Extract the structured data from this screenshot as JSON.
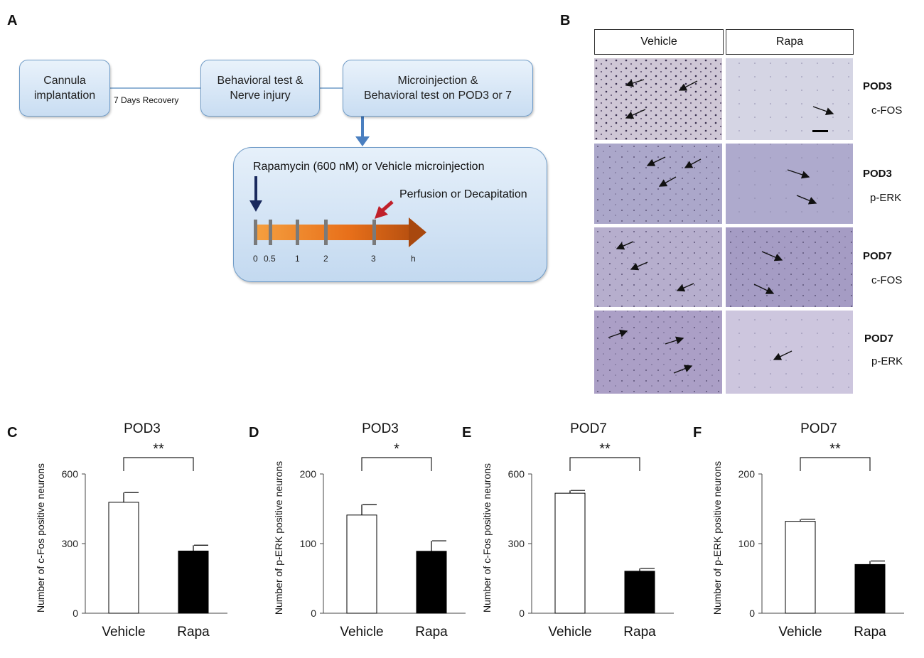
{
  "panels": {
    "A": "A",
    "B": "B",
    "C": "C",
    "D": "D",
    "E": "E",
    "F": "F"
  },
  "schematic": {
    "box1": "Cannula\nimplantation",
    "recovery": "7 Days Recovery",
    "box2": "Behavioral  test &\nNerve  injury",
    "box3": "Microinjection &\nBehavioral  test on POD3 or 7",
    "injection_text": "Rapamycin (600 nM) or Vehicle microinjection",
    "perfusion_text": "Perfusion  or Decapitation",
    "timeline_ticks": [
      "0",
      "0.5",
      "1",
      "2",
      "3",
      "h"
    ]
  },
  "histology": {
    "columns": [
      "Vehicle",
      "Rapa"
    ],
    "rows": [
      {
        "day": "POD3",
        "marker": "c-FOS"
      },
      {
        "day": "POD3",
        "marker": "p-ERK"
      },
      {
        "day": "POD7",
        "marker": "c-FOS"
      },
      {
        "day": "POD7",
        "marker": "p-ERK"
      }
    ]
  },
  "colors": {
    "box_border": "#6f9bc7",
    "arrow_blue": "#4a7fc0",
    "arrow_navy": "#1a2a5e",
    "arrow_red": "#c0202a",
    "timeline_orange": "#f07a20",
    "tissue": "#a8a2c8"
  },
  "chart_data": [
    {
      "panel": "C",
      "type": "bar",
      "title": "POD3",
      "ylabel": "Number of c-Fos positive neurons",
      "xlabel": "",
      "categories": [
        "Vehicle",
        "Rapa"
      ],
      "values": [
        478,
        268
      ],
      "errors": [
        42,
        25
      ],
      "ylim": [
        0,
        600
      ],
      "yticks": [
        0,
        300,
        600
      ],
      "significance": "**",
      "fills": [
        "#ffffff",
        "#000000"
      ]
    },
    {
      "panel": "D",
      "type": "bar",
      "title": "POD3",
      "ylabel": "Number of p-ERK positive neurons",
      "xlabel": "",
      "categories": [
        "Vehicle",
        "Rapa"
      ],
      "values": [
        141,
        89
      ],
      "errors": [
        15,
        15
      ],
      "ylim": [
        0,
        200
      ],
      "yticks": [
        0,
        100,
        200
      ],
      "significance": "*",
      "fills": [
        "#ffffff",
        "#000000"
      ]
    },
    {
      "panel": "E",
      "type": "bar",
      "title": "POD7",
      "ylabel": "Number of c-Fos positive neurons",
      "xlabel": "",
      "categories": [
        "Vehicle",
        "Rapa"
      ],
      "values": [
        517,
        181
      ],
      "errors": [
        12,
        12
      ],
      "ylim": [
        0,
        600
      ],
      "yticks": [
        0,
        300,
        600
      ],
      "significance": "**",
      "fills": [
        "#ffffff",
        "#000000"
      ]
    },
    {
      "panel": "F",
      "type": "bar",
      "title": "POD7",
      "ylabel": "Number of  p-ERK positive neurons",
      "xlabel": "",
      "categories": [
        "Vehicle",
        "Rapa"
      ],
      "values": [
        132,
        70
      ],
      "errors": [
        3,
        5
      ],
      "ylim": [
        0,
        200
      ],
      "yticks": [
        0,
        100,
        200
      ],
      "significance": "**",
      "fills": [
        "#ffffff",
        "#000000"
      ]
    }
  ]
}
